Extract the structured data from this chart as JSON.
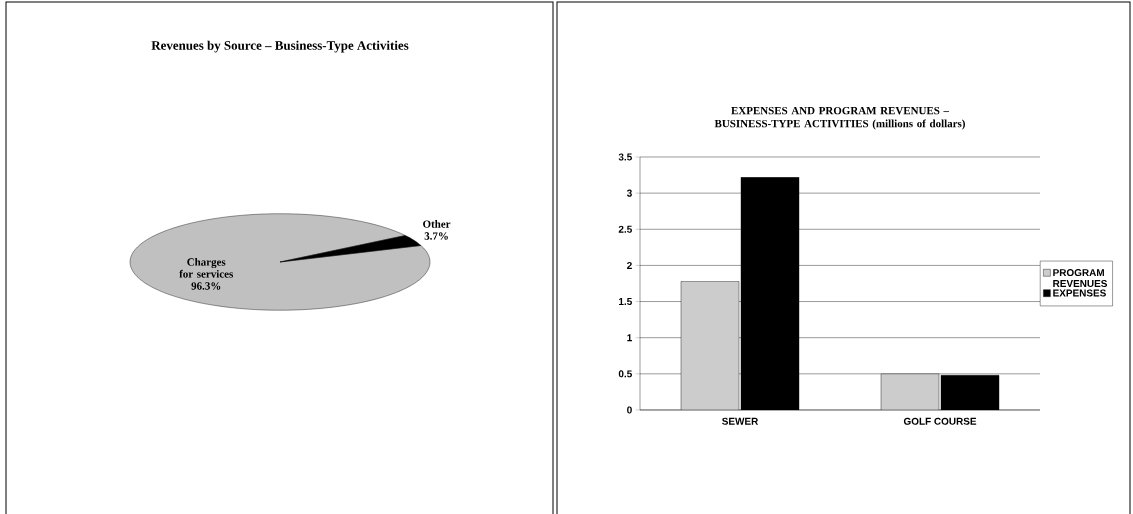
{
  "chart_data": [
    {
      "type": "pie",
      "title": "Revenues by Source – Business-Type Activities",
      "categories": [
        "Charges for services",
        "Other"
      ],
      "values": [
        96.3,
        3.7
      ],
      "colors": [
        "#c0c0c0",
        "#000000"
      ],
      "value_labels": [
        "96.3%",
        "3.7%"
      ]
    },
    {
      "type": "bar",
      "title": "EXPENSES AND PROGRAM REVENUES – BUSINESS-TYPE ACTIVITIES (millions of dollars)",
      "categories": [
        "SEWER",
        "GOLF COURSE"
      ],
      "series": [
        {
          "name": "PROGRAM REVENUES",
          "color": "#cccccc",
          "values": [
            1.78,
            0.5
          ]
        },
        {
          "name": "EXPENSES",
          "color": "#000000",
          "values": [
            3.22,
            0.48
          ]
        }
      ],
      "ylim": [
        0,
        3.5
      ],
      "yticks": [
        0,
        0.5,
        1,
        1.5,
        2,
        2.5,
        3,
        3.5
      ],
      "grid": "y",
      "legend": "right"
    }
  ]
}
